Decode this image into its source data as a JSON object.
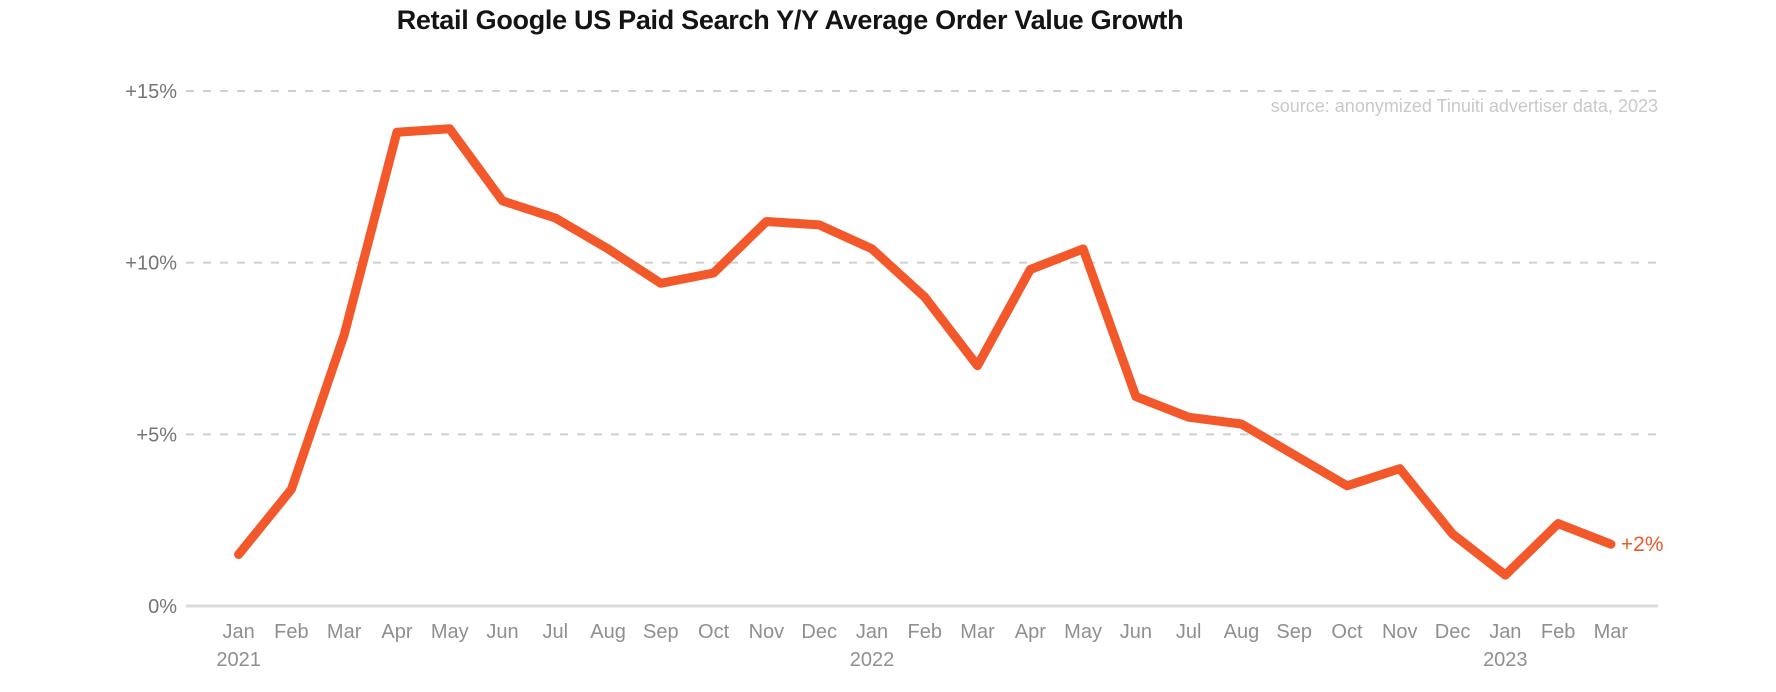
{
  "chart_data": {
    "type": "line",
    "title": "Retail Google US Paid Search Y/Y Average Order Value Growth",
    "source_note": "source: anonymized Tinuiti advertiser data, 2023",
    "series_name": "Y/Y average order value growth (%)",
    "x": [
      "Jan 2021",
      "Feb 2021",
      "Mar 2021",
      "Apr 2021",
      "May 2021",
      "Jun 2021",
      "Jul 2021",
      "Aug 2021",
      "Sep 2021",
      "Oct 2021",
      "Nov 2021",
      "Dec 2021",
      "Jan 2022",
      "Feb 2022",
      "Mar 2022",
      "Apr 2022",
      "May 2022",
      "Jun 2022",
      "Jul 2022",
      "Aug 2022",
      "Sep 2022",
      "Oct 2022",
      "Nov 2022",
      "Dec 2022",
      "Jan 2023",
      "Feb 2023",
      "Mar 2023"
    ],
    "month_labels": [
      "Jan",
      "Feb",
      "Mar",
      "Apr",
      "May",
      "Jun",
      "Jul",
      "Aug",
      "Sep",
      "Oct",
      "Nov",
      "Dec",
      "Jan",
      "Feb",
      "Mar",
      "Apr",
      "May",
      "Jun",
      "Jul",
      "Aug",
      "Sep",
      "Oct",
      "Nov",
      "Dec",
      "Jan",
      "Feb",
      "Mar"
    ],
    "year_breaks": [
      {
        "index": 0,
        "year": "2021"
      },
      {
        "index": 12,
        "year": "2022"
      },
      {
        "index": 24,
        "year": "2023"
      }
    ],
    "values": [
      1.5,
      3.4,
      7.9,
      13.8,
      13.9,
      11.8,
      11.3,
      10.4,
      9.4,
      9.7,
      11.2,
      11.1,
      10.4,
      9.0,
      7.0,
      9.8,
      10.4,
      6.1,
      5.5,
      5.3,
      4.4,
      3.5,
      4.0,
      2.1,
      0.9,
      2.4,
      1.8
    ],
    "end_label": "+2%",
    "y_ticks": [
      {
        "value": 0,
        "label": "0%"
      },
      {
        "value": 5,
        "label": "+5%"
      },
      {
        "value": 10,
        "label": "+10%"
      },
      {
        "value": 15,
        "label": "+15%"
      }
    ],
    "ylim": [
      0,
      15
    ],
    "grid": "horizontal-dashed",
    "legend": "none",
    "line_color": "#F2582A",
    "label_color": "#8F8F8F",
    "ytick_color": "#757575",
    "grid_color": "#CFCFCF",
    "baseline_color": "#DBDBDB",
    "title_color": "#141414",
    "source_color": "#C9C9C9"
  }
}
